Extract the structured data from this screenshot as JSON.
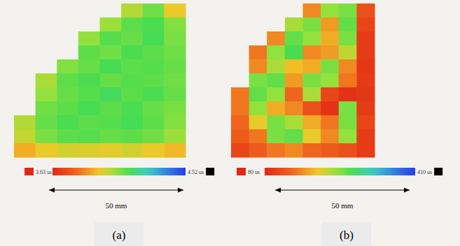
{
  "chart_data": [
    {
      "type": "heatmap",
      "panel": "(a)",
      "x_label": "50 mm",
      "colorbar": {
        "range": [
          3.63,
          4.52
        ],
        "ticks": [
          {
            "value": 3.63,
            "label": "3.63 us"
          },
          {
            "value": 4.52,
            "label": "4.52 us"
          }
        ]
      },
      "cells": [
        [
          null,
          null,
          null,
          null,
          null,
          4.02,
          4.1,
          3.95
        ],
        [
          null,
          null,
          null,
          null,
          4.05,
          4.12,
          4.14,
          4.08
        ],
        [
          null,
          null,
          null,
          4.06,
          4.13,
          4.11,
          4.15,
          4.09
        ],
        [
          null,
          null,
          null,
          4.12,
          4.1,
          4.14,
          4.12,
          4.1
        ],
        [
          null,
          null,
          4.08,
          4.11,
          4.15,
          4.12,
          4.13,
          4.11
        ],
        [
          null,
          4.03,
          4.12,
          4.14,
          4.11,
          4.13,
          4.12,
          4.1
        ],
        [
          null,
          4.06,
          4.11,
          4.13,
          4.16,
          4.12,
          4.14,
          4.11
        ],
        [
          null,
          4.1,
          4.12,
          4.15,
          4.12,
          4.14,
          4.11,
          4.09
        ],
        [
          4.02,
          4.11,
          4.14,
          4.12,
          4.13,
          4.15,
          4.12,
          4.08
        ],
        [
          4.0,
          4.09,
          4.12,
          4.13,
          4.11,
          4.12,
          4.1,
          4.05
        ],
        [
          3.9,
          3.95,
          3.98,
          3.97,
          3.96,
          3.98,
          3.95,
          3.92
        ]
      ]
    },
    {
      "type": "heatmap",
      "panel": "(b)",
      "x_label": "50 mm",
      "colorbar": {
        "range": [
          80,
          410
        ],
        "ticks": [
          {
            "value": 80,
            "label": "80 us"
          },
          {
            "value": 410,
            "label": "410 us"
          }
        ]
      },
      "cells": [
        [
          null,
          null,
          null,
          null,
          160,
          240,
          250,
          120
        ],
        [
          null,
          null,
          null,
          230,
          250,
          170,
          260,
          110
        ],
        [
          null,
          null,
          160,
          260,
          240,
          180,
          250,
          100
        ],
        [
          null,
          150,
          240,
          270,
          160,
          170,
          220,
          100
        ],
        [
          null,
          160,
          230,
          190,
          180,
          250,
          160,
          95
        ],
        [
          null,
          250,
          260,
          170,
          250,
          240,
          150,
          100
        ],
        [
          150,
          260,
          240,
          140,
          230,
          110,
          90,
          95
        ],
        [
          150,
          240,
          180,
          160,
          120,
          90,
          250,
          100
        ],
        [
          140,
          200,
          250,
          230,
          180,
          150,
          250,
          110
        ],
        [
          130,
          150,
          250,
          260,
          200,
          160,
          240,
          100
        ],
        [
          110,
          130,
          150,
          160,
          140,
          130,
          120,
          100
        ]
      ]
    }
  ]
}
